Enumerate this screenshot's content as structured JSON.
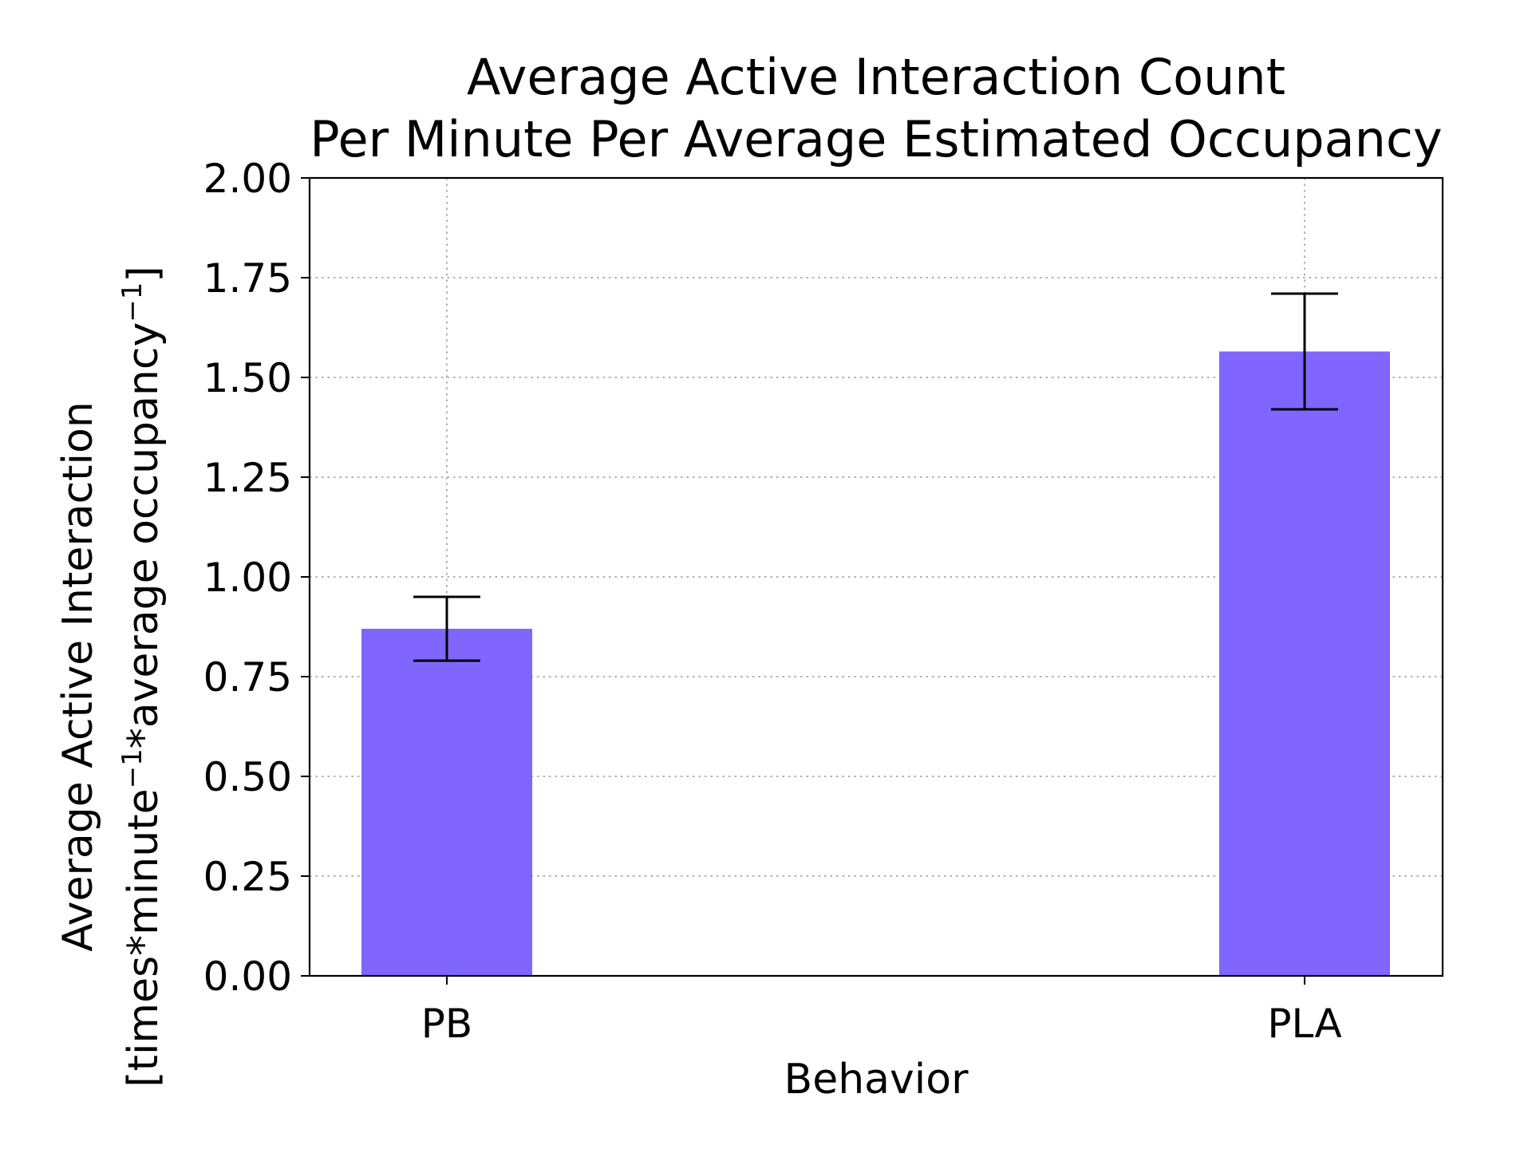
{
  "chart_data": {
    "type": "bar",
    "title": {
      "line1": "Average Active Interaction Count",
      "line2": "Per Minute Per Average Estimated Occupancy"
    },
    "xlabel": "Behavior",
    "ylabel": {
      "line1": "Average Active Interaction",
      "line2_parts": [
        "[times*minute",
        "−1",
        "*average occupancy",
        "−1",
        "]"
      ]
    },
    "categories": [
      "PB",
      "PLA"
    ],
    "values": [
      0.87,
      1.565
    ],
    "error_low": [
      0.79,
      1.42
    ],
    "error_high": [
      0.95,
      1.71
    ],
    "ylim": [
      0,
      2.0
    ],
    "yticks": [
      0.0,
      0.25,
      0.5,
      0.75,
      1.0,
      1.25,
      1.5,
      1.75,
      2.0
    ],
    "ytick_labels": [
      "0.00",
      "0.25",
      "0.50",
      "0.75",
      "1.00",
      "1.25",
      "1.50",
      "1.75",
      "2.00"
    ],
    "grid": true,
    "bar_color": "#8066ff",
    "error_color": "#000000"
  }
}
